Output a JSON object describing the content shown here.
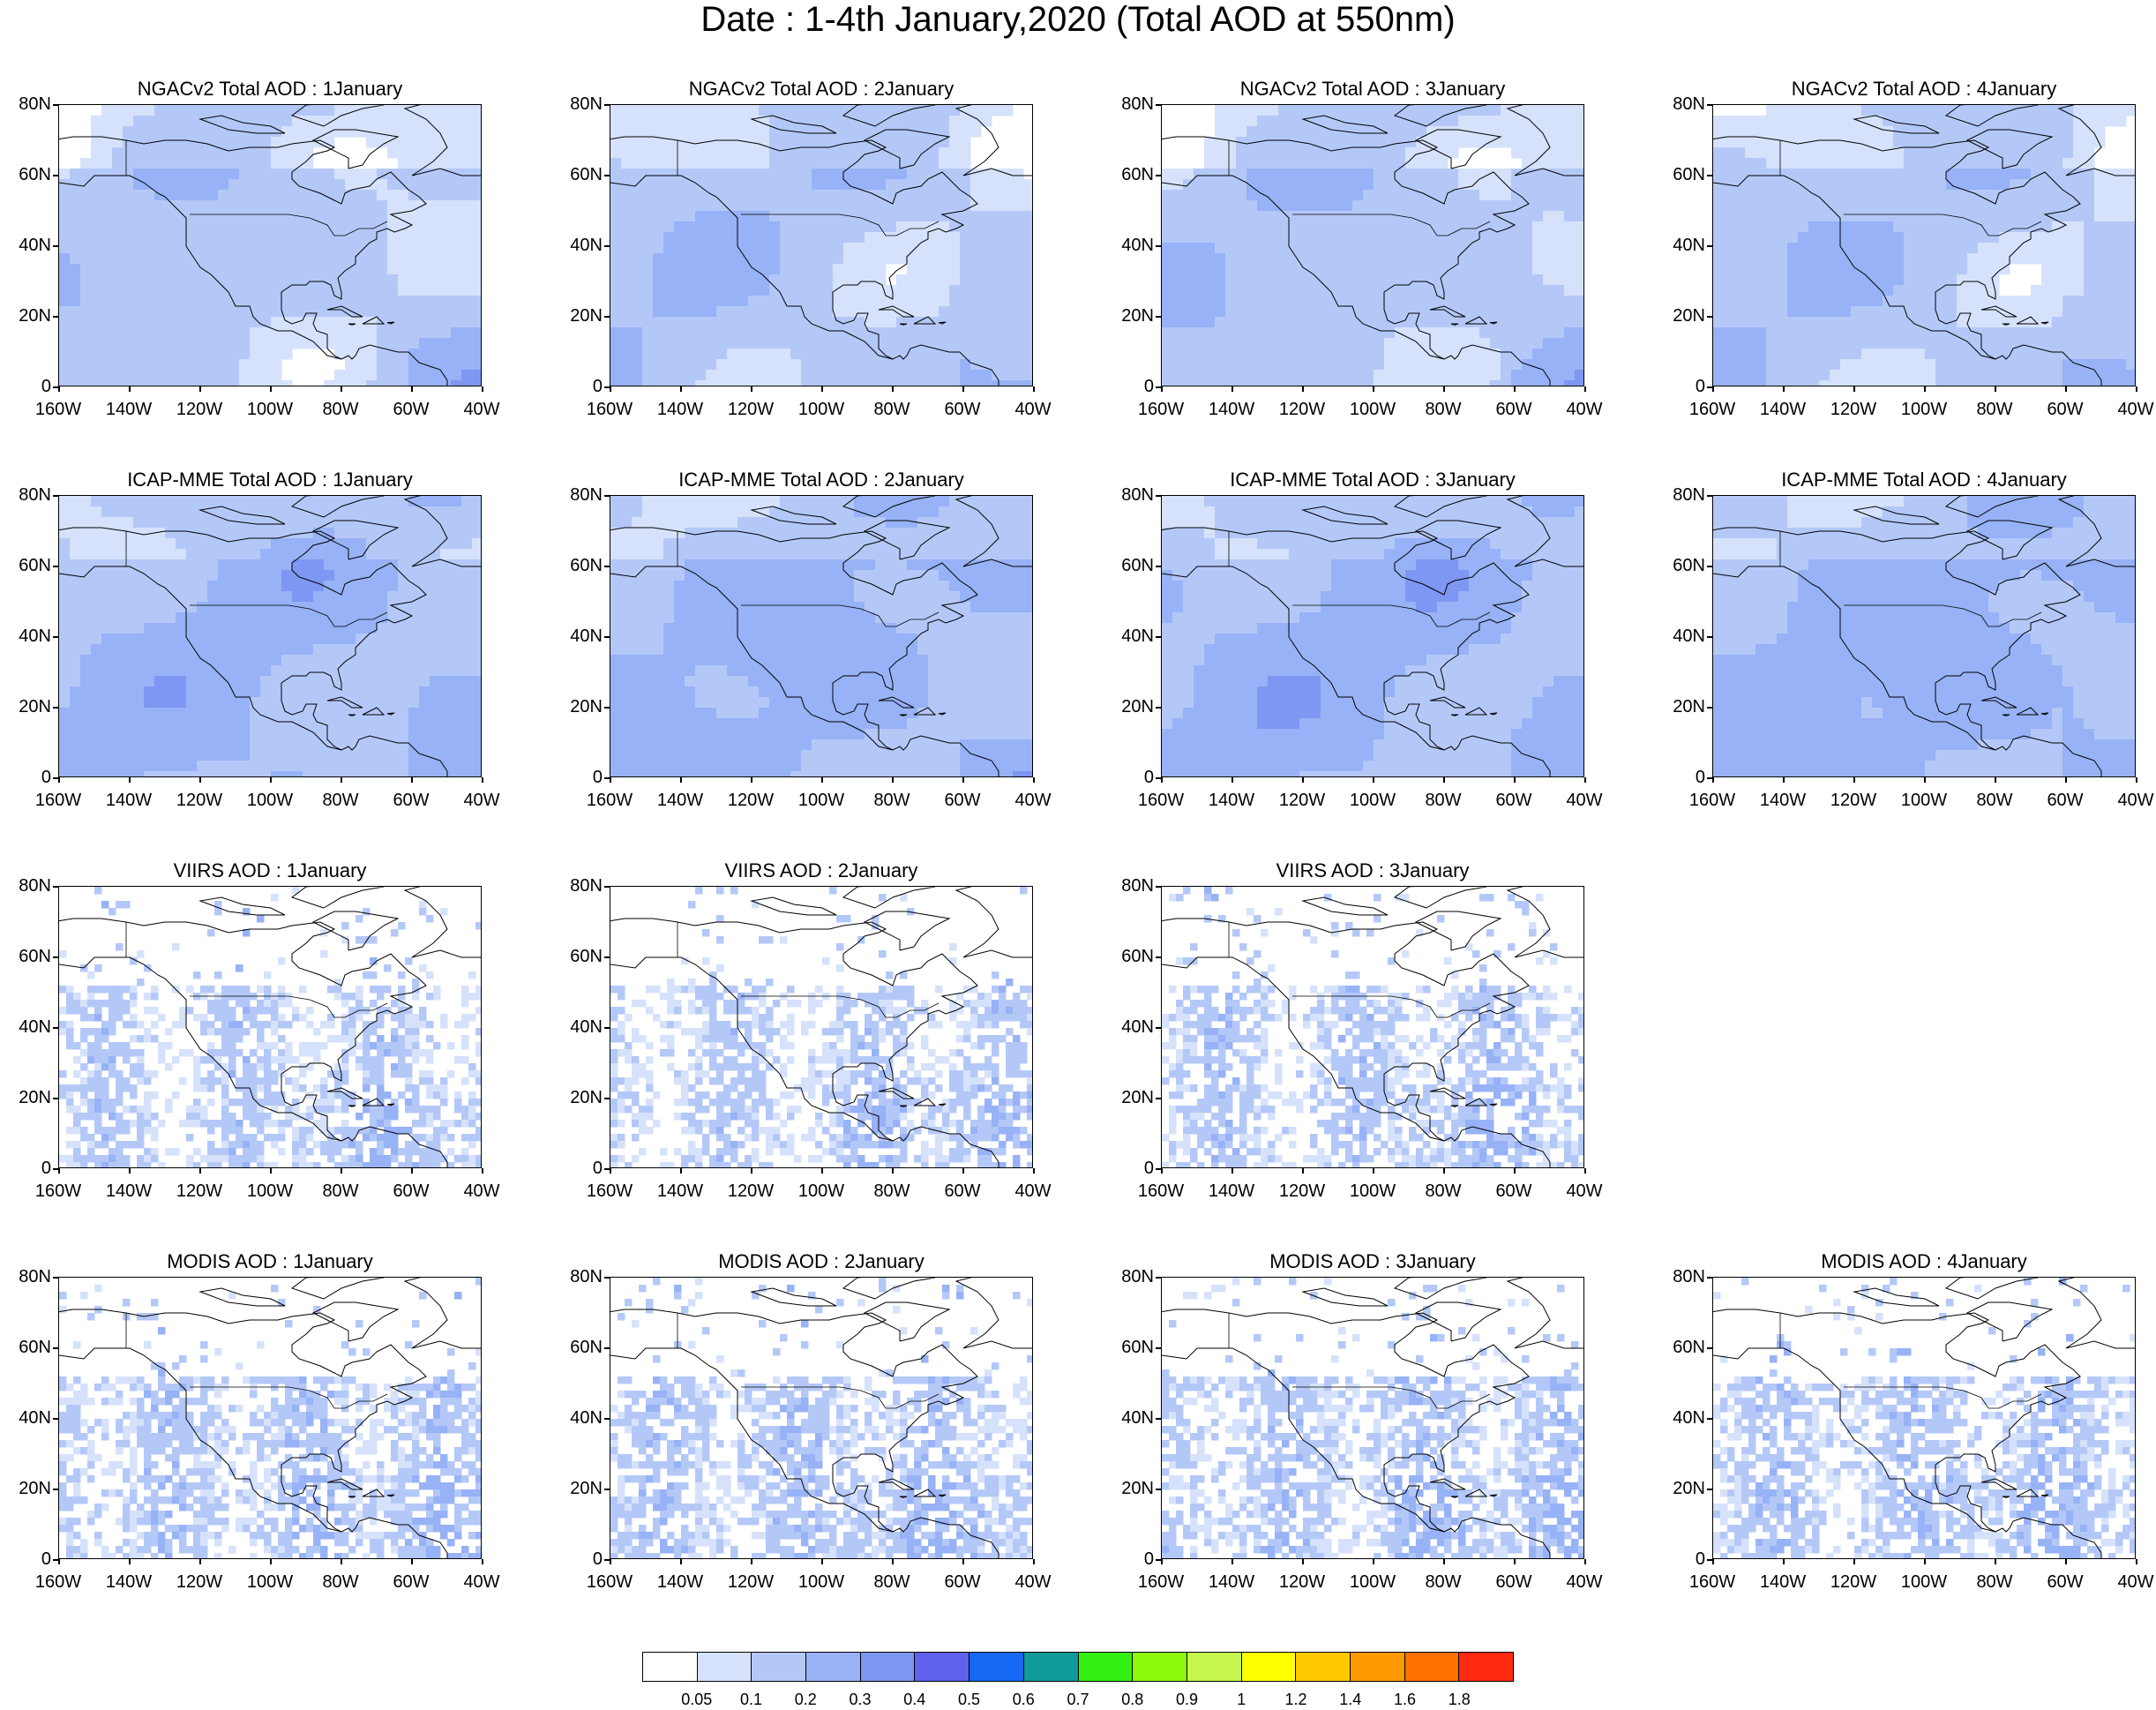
{
  "title": "Date : 1-4th January,2020 (Total AOD at 550nm)",
  "y_ticks": [
    "80N",
    "60N",
    "40N",
    "20N",
    "0"
  ],
  "x_ticks": [
    "160W",
    "140W",
    "120W",
    "100W",
    "80W",
    "60W",
    "40W"
  ],
  "panels": [
    {
      "title": "NGACv2 Total AOD : 1January",
      "row": 0,
      "col": 0,
      "kind": "model",
      "seed": 11,
      "level": 0.14
    },
    {
      "title": "NGACv2 Total AOD : 2January",
      "row": 0,
      "col": 1,
      "kind": "model",
      "seed": 12,
      "level": 0.15
    },
    {
      "title": "NGACv2 Total AOD : 3January",
      "row": 0,
      "col": 2,
      "kind": "model",
      "seed": 13,
      "level": 0.15
    },
    {
      "title": "NGACv2 Total AOD : 4January",
      "row": 0,
      "col": 3,
      "kind": "model",
      "seed": 14,
      "level": 0.15
    },
    {
      "title": "ICAP-MME Total AOD : 1January",
      "row": 1,
      "col": 0,
      "kind": "model",
      "seed": 21,
      "level": 0.2
    },
    {
      "title": "ICAP-MME Total AOD : 2January",
      "row": 1,
      "col": 1,
      "kind": "model",
      "seed": 22,
      "level": 0.2
    },
    {
      "title": "ICAP-MME Total AOD : 3January",
      "row": 1,
      "col": 2,
      "kind": "model",
      "seed": 23,
      "level": 0.21
    },
    {
      "title": "ICAP-MME Total AOD : 4January",
      "row": 1,
      "col": 3,
      "kind": "model",
      "seed": 24,
      "level": 0.21
    },
    {
      "title": "VIIRS AOD : 1January",
      "row": 2,
      "col": 0,
      "kind": "obs",
      "seed": 31,
      "level": 0.1
    },
    {
      "title": "VIIRS AOD : 2January",
      "row": 2,
      "col": 1,
      "kind": "obs",
      "seed": 32,
      "level": 0.1
    },
    {
      "title": "VIIRS AOD : 3January",
      "row": 2,
      "col": 2,
      "kind": "obs",
      "seed": 33,
      "level": 0.11
    },
    {
      "title": "MODIS AOD : 1January",
      "row": 3,
      "col": 0,
      "kind": "obs",
      "seed": 41,
      "level": 0.12
    },
    {
      "title": "MODIS AOD : 2January",
      "row": 3,
      "col": 1,
      "kind": "obs",
      "seed": 42,
      "level": 0.12
    },
    {
      "title": "MODIS AOD : 3January",
      "row": 3,
      "col": 2,
      "kind": "obs",
      "seed": 43,
      "level": 0.12
    },
    {
      "title": "MODIS AOD : 4January",
      "row": 3,
      "col": 3,
      "kind": "obs",
      "seed": 44,
      "level": 0.12
    }
  ],
  "colorbar": {
    "colors": [
      "#ffffff",
      "#d6e2fb",
      "#b4c8f8",
      "#97b2f6",
      "#7e97f3",
      "#5f62ec",
      "#1668f5",
      "#109a9a",
      "#33f013",
      "#8cf80c",
      "#c6f64b",
      "#ffff00",
      "#ffc800",
      "#ff9900",
      "#ff7000",
      "#ff2a10"
    ],
    "labels": [
      "0.05",
      "0.1",
      "0.2",
      "0.3",
      "0.4",
      "0.5",
      "0.6",
      "0.7",
      "0.8",
      "0.9",
      "1",
      "1.2",
      "1.4",
      "1.6",
      "1.8"
    ]
  }
}
